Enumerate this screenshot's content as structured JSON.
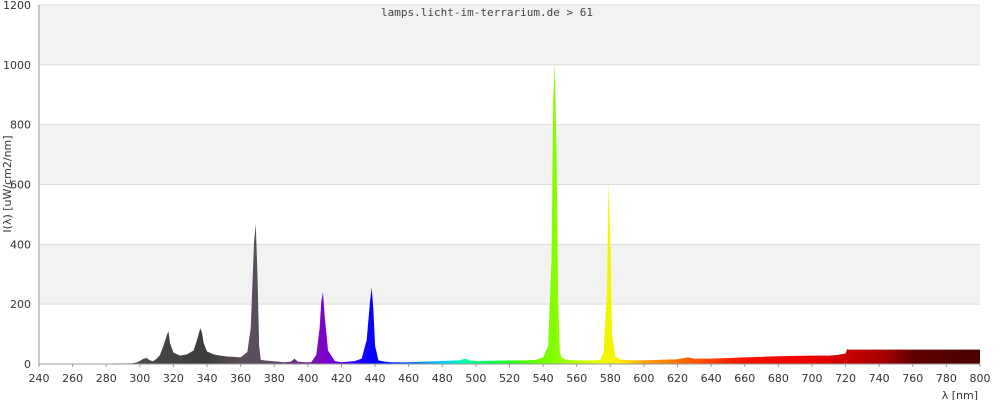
{
  "chart_data": {
    "type": "area",
    "title": "lamps.licht-im-terrarium.de > 61",
    "xlabel": "λ [nm]",
    "ylabel": "I(λ)  [uW/cm2/nm]",
    "xlim": [
      240,
      800
    ],
    "ylim": [
      0,
      1200
    ],
    "x_ticks": [
      240,
      260,
      280,
      300,
      320,
      340,
      360,
      380,
      400,
      420,
      440,
      460,
      480,
      500,
      520,
      540,
      560,
      580,
      600,
      620,
      640,
      660,
      680,
      700,
      720,
      740,
      760,
      780,
      800
    ],
    "y_ticks": [
      0,
      200,
      400,
      600,
      800,
      1000,
      1200
    ],
    "grid": "horizontal alternating bands",
    "legend": "none",
    "series": [
      {
        "x": [
          240,
          295,
          298,
          300,
          302,
          304,
          306,
          308,
          310,
          312,
          314,
          316,
          317,
          318,
          320,
          324,
          328,
          332,
          334,
          336,
          337,
          338,
          340,
          344,
          348,
          352,
          356,
          360,
          364,
          366,
          368,
          369,
          370,
          371,
          372,
          374,
          378,
          382,
          386,
          390,
          392,
          394,
          398,
          402,
          405,
          407,
          408,
          409,
          410,
          412,
          416,
          420,
          424,
          428,
          432,
          435,
          437,
          438,
          439,
          440,
          442,
          446,
          450,
          460,
          470,
          480,
          490,
          494,
          496,
          500,
          510,
          520,
          530,
          536,
          540,
          543,
          545,
          546,
          547,
          548,
          549,
          550,
          551,
          553,
          556,
          560,
          565,
          570,
          574,
          576,
          578,
          579,
          580,
          581,
          583,
          586,
          590,
          595,
          600,
          610,
          620,
          626,
          630,
          640,
          650,
          660,
          670,
          680,
          690,
          700,
          710,
          715,
          720,
          721,
          722,
          730,
          740,
          750,
          760,
          770,
          780,
          790,
          800
        ],
        "y": [
          0,
          2,
          5,
          10,
          17,
          20,
          12,
          9,
          18,
          30,
          60,
          95,
          110,
          70,
          38,
          28,
          32,
          45,
          80,
          120,
          105,
          70,
          42,
          32,
          28,
          25,
          24,
          22,
          40,
          120,
          410,
          468,
          300,
          60,
          14,
          12,
          10,
          8,
          6,
          8,
          18,
          8,
          6,
          6,
          30,
          120,
          210,
          240,
          160,
          45,
          10,
          6,
          8,
          10,
          18,
          80,
          210,
          255,
          180,
          60,
          12,
          8,
          6,
          6,
          8,
          10,
          12,
          18,
          12,
          10,
          11,
          12,
          12,
          14,
          22,
          60,
          350,
          880,
          1005,
          700,
          200,
          40,
          22,
          16,
          13,
          12,
          12,
          12,
          14,
          40,
          250,
          605,
          420,
          100,
          25,
          15,
          13,
          12,
          12,
          14,
          16,
          22,
          18,
          18,
          20,
          22,
          24,
          26,
          27,
          28,
          28,
          30,
          35,
          50,
          48,
          48,
          48,
          48,
          48,
          48,
          48,
          48,
          48
        ]
      }
    ]
  }
}
